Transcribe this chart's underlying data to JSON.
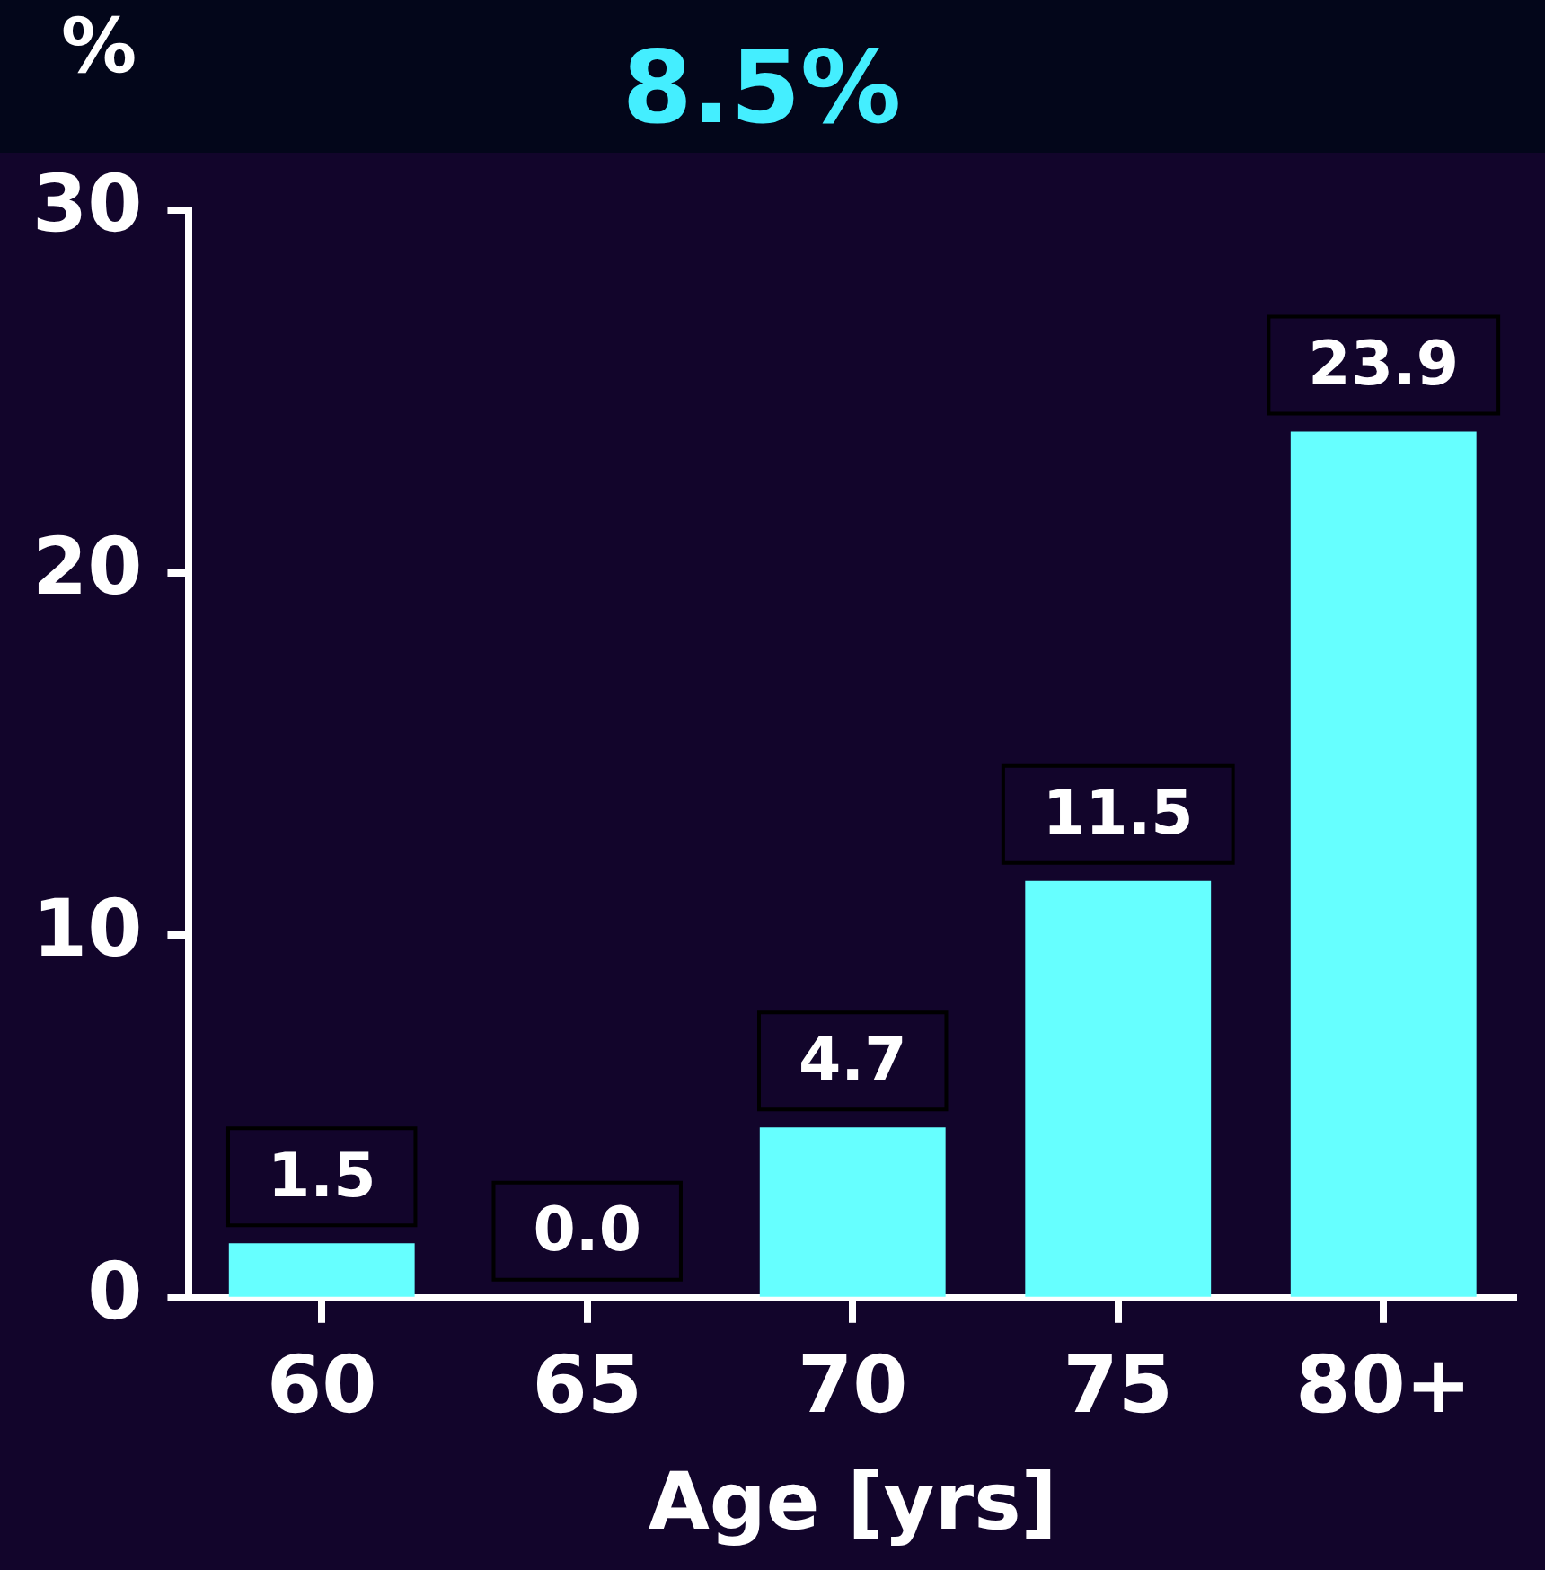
{
  "chart_data": {
    "type": "bar",
    "title": "8.5%",
    "xlabel": "Age [yrs]",
    "ylabel": "%",
    "categories": [
      "60",
      "65",
      "70",
      "75",
      "80+"
    ],
    "values": [
      1.5,
      0.0,
      4.7,
      11.5,
      23.9
    ],
    "color": "#66ffff",
    "ylim": [
      0,
      30
    ],
    "yticks": [
      0,
      10,
      20,
      30
    ],
    "value_labels": [
      "1.5",
      "0.0",
      "4.7",
      "11.5",
      "23.9"
    ],
    "grid": false,
    "legend": false
  }
}
